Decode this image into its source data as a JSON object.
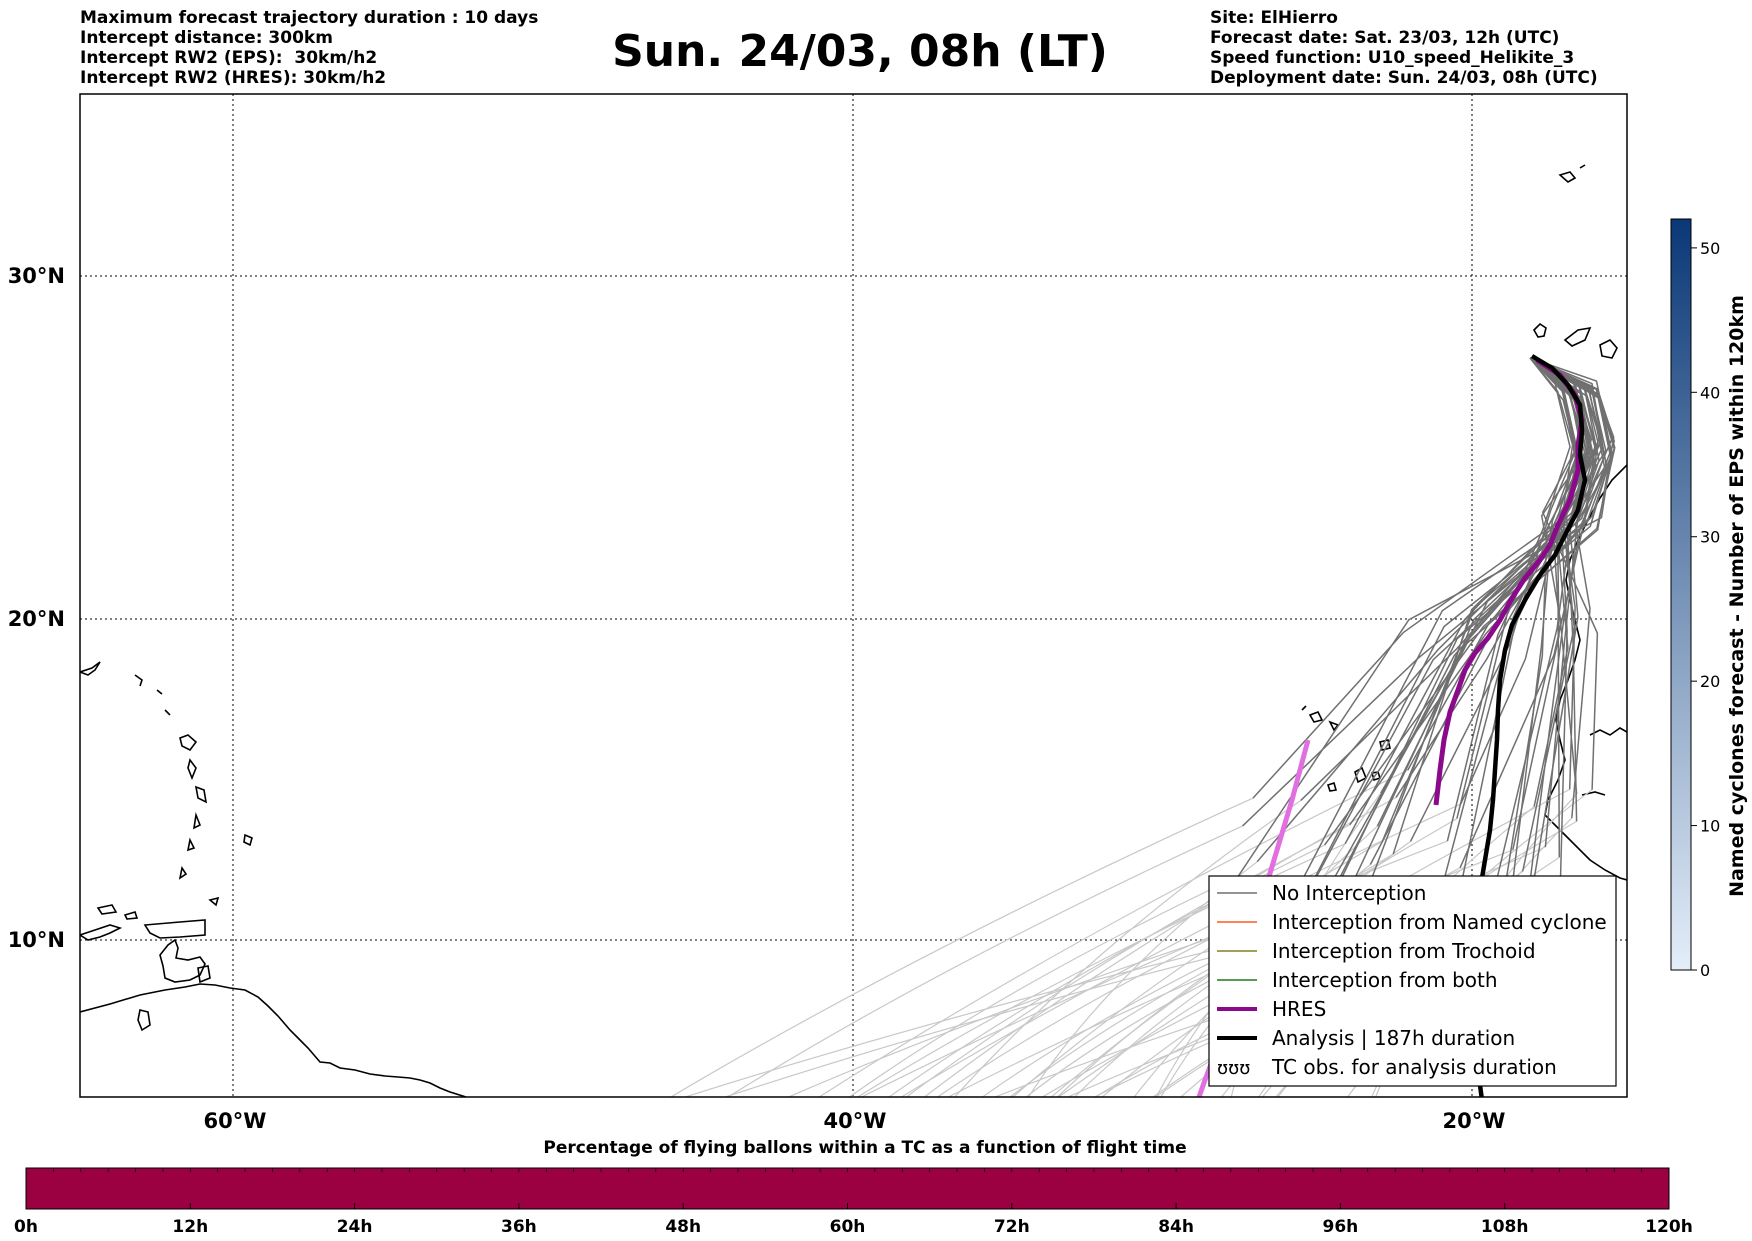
{
  "title": "Sun. 24/03, 08h (LT)",
  "header_left": [
    "Maximum forecast trajectory duration : 10 days",
    "Intercept distance: 300km",
    "Intercept RW2 (EPS):  30km/h2",
    "Intercept RW2 (HRES): 30km/h2"
  ],
  "header_right": [
    "Site: ElHierro",
    "Forecast date: Sat. 23/03, 12h (UTC)",
    "Speed function: U10_speed_Helikite_3",
    "Deployment date: Sun. 24/03, 08h (UTC)"
  ],
  "map": {
    "lon_range": [
      -65,
      15
    ],
    "lat_range": [
      5,
      35
    ],
    "lon_grid_labels": [
      "60°W",
      "40°W",
      "20°W"
    ],
    "lat_grid_labels": [
      "30°N",
      "20°N",
      "10°N"
    ],
    "gridlines": "dotted",
    "colors": {
      "no_interception": "#707070",
      "faded_trajectory": "#c8c8c8",
      "named_cyclone": "#ff5a1e",
      "trochoid": "#808020",
      "both": "#1e7a1e",
      "hres": "#8b0a8b",
      "hres_faded": "#e070e0",
      "analysis": "#000000"
    }
  },
  "legend": {
    "position": "lower-right",
    "items": [
      {
        "label": "No Interception",
        "color": "#707070",
        "style": "thin"
      },
      {
        "label": "Interception from Named cyclone",
        "color": "#ff5a1e",
        "style": "thin"
      },
      {
        "label": "Interception from Trochoid",
        "color": "#808020",
        "style": "thin"
      },
      {
        "label": "Interception from both",
        "color": "#1e7a1e",
        "style": "thin"
      },
      {
        "label": "HRES",
        "color": "#8b0a8b",
        "style": "thick"
      },
      {
        "label": "Analysis | 187h duration",
        "color": "#000000",
        "style": "thick"
      },
      {
        "label": "TC obs. for analysis duration",
        "color": "#000000",
        "style": "marker",
        "marker_icon": "tc-symbol-icon"
      }
    ]
  },
  "colorbar_right": {
    "label": "Named cyclones forecast - Number of EPS within 120km",
    "ticks": [
      "0",
      "10",
      "20",
      "30",
      "40",
      "50"
    ],
    "range": [
      0,
      52
    ],
    "color_low": "#e4eef9",
    "color_high": "#0a3877"
  },
  "bottom_bar": {
    "title": "Percentage of flying ballons within a TC as a function of flight time",
    "ticks": [
      "0h",
      "12h",
      "24h",
      "36h",
      "48h",
      "60h",
      "72h",
      "84h",
      "96h",
      "108h",
      "120h"
    ],
    "fill_color": "#9b0040",
    "segments": 60
  }
}
